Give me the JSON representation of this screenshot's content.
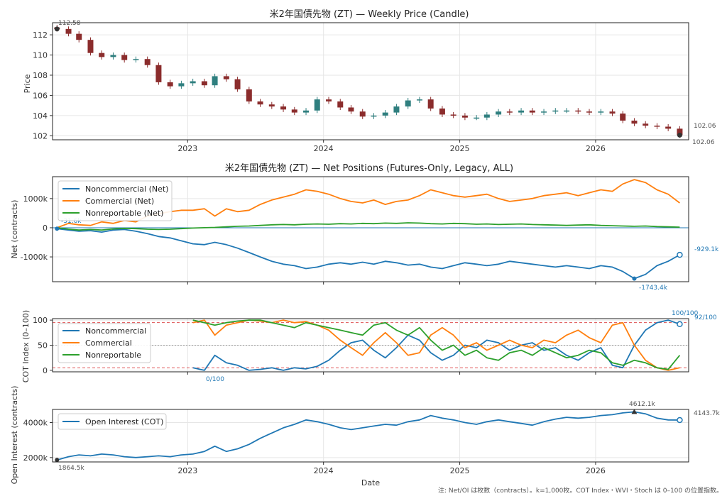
{
  "note": "注: Net/OI は枚数（contracts）。k=1,000枚。COT Index・WVI・Stoch は 0–100 の位置指数。",
  "xlabel": "Date",
  "x_ticks": [
    "2023",
    "2024",
    "2025",
    "2026"
  ],
  "colors": {
    "noncommercial": "#1f77b4",
    "commercial": "#ff7f0e",
    "nonreportable": "#2ca02c",
    "oi": "#1f77b4",
    "candle_up": "#2f7f7f",
    "candle_down": "#8b2c2c"
  },
  "chart_data": [
    {
      "type": "candlestick",
      "title": "米2年国債先物 (ZT) — Weekly Price (Candle)",
      "ylabel": "Price",
      "yticks": [
        "102",
        "104",
        "106",
        "108",
        "110",
        "112"
      ],
      "ylim": [
        101.6,
        113.2
      ],
      "xlim": [
        "2022-01-03",
        "2026-09-08"
      ],
      "annotations": {
        "start": "112.58",
        "end_last": "102.06",
        "end_low": "102.06"
      },
      "x": [
        "2022-01",
        "2022-02",
        "2022-03",
        "2022-04",
        "2022-05",
        "2022-06",
        "2022-07",
        "2022-08",
        "2022-09",
        "2022-10",
        "2022-11",
        "2022-12",
        "2023-01",
        "2023-02",
        "2023-03",
        "2023-04",
        "2023-05",
        "2023-06",
        "2023-07",
        "2023-08",
        "2023-09",
        "2023-10",
        "2023-11",
        "2023-12",
        "2024-01",
        "2024-02",
        "2024-03",
        "2024-04",
        "2024-05",
        "2024-06",
        "2024-07",
        "2024-08",
        "2024-09",
        "2024-10",
        "2024-11",
        "2024-12",
        "2025-01",
        "2025-02",
        "2025-03",
        "2025-04",
        "2025-05",
        "2025-06",
        "2025-07",
        "2025-08",
        "2025-09",
        "2025-10",
        "2025-11",
        "2025-12",
        "2026-01",
        "2026-02",
        "2026-03",
        "2026-04",
        "2026-05",
        "2026-06",
        "2026-07",
        "2026-08"
      ],
      "close": [
        112.58,
        112.1,
        111.5,
        110.2,
        109.8,
        110.0,
        109.5,
        109.6,
        109.0,
        107.3,
        106.9,
        107.2,
        107.4,
        107.0,
        107.9,
        107.6,
        106.6,
        105.4,
        105.1,
        104.9,
        104.6,
        104.3,
        104.5,
        105.6,
        105.4,
        104.8,
        104.4,
        103.9,
        104.0,
        104.3,
        104.9,
        105.5,
        105.6,
        104.7,
        104.1,
        104.0,
        103.8,
        103.8,
        104.1,
        104.4,
        104.3,
        104.5,
        104.3,
        104.4,
        104.5,
        104.5,
        104.4,
        104.3,
        104.4,
        104.2,
        103.5,
        103.2,
        103.0,
        102.9,
        102.7,
        102.06
      ]
    },
    {
      "type": "line",
      "title": "米2年国債先物 (ZT) — Net Positions (Futures-Only, Legacy, ALL)",
      "ylabel": "Net (contracts)",
      "yticks": [
        "-1000k",
        "0",
        "1000k"
      ],
      "ylim": [
        -1850,
        1750
      ],
      "annotations": {
        "start": "-31.6k",
        "min": "-1743.4k",
        "last": "-929.1k"
      },
      "x": [
        "2022-01",
        "2022-02",
        "2022-03",
        "2022-04",
        "2022-05",
        "2022-06",
        "2022-07",
        "2022-08",
        "2022-09",
        "2022-10",
        "2022-11",
        "2022-12",
        "2023-01",
        "2023-02",
        "2023-03",
        "2023-04",
        "2023-05",
        "2023-06",
        "2023-07",
        "2023-08",
        "2023-09",
        "2023-10",
        "2023-11",
        "2023-12",
        "2024-01",
        "2024-02",
        "2024-03",
        "2024-04",
        "2024-05",
        "2024-06",
        "2024-07",
        "2024-08",
        "2024-09",
        "2024-10",
        "2024-11",
        "2024-12",
        "2025-01",
        "2025-02",
        "2025-03",
        "2025-04",
        "2025-05",
        "2025-06",
        "2025-07",
        "2025-08",
        "2025-09",
        "2025-10",
        "2025-11",
        "2025-12",
        "2026-01",
        "2026-02",
        "2026-03",
        "2026-04",
        "2026-05",
        "2026-06",
        "2026-07",
        "2026-08"
      ],
      "series": [
        {
          "name": "Noncommercial (Net)",
          "values": [
            -31.6,
            -80,
            -120,
            -100,
            -150,
            -80,
            -60,
            -120,
            -200,
            -300,
            -350,
            -450,
            -550,
            -580,
            -500,
            -580,
            -700,
            -850,
            -1000,
            -1150,
            -1250,
            -1300,
            -1400,
            -1350,
            -1250,
            -1200,
            -1250,
            -1180,
            -1250,
            -1150,
            -1200,
            -1280,
            -1250,
            -1350,
            -1400,
            -1300,
            -1200,
            -1250,
            -1300,
            -1250,
            -1150,
            -1200,
            -1250,
            -1300,
            -1350,
            -1300,
            -1350,
            -1400,
            -1300,
            -1350,
            -1500,
            -1743.4,
            -1600,
            -1300,
            -1150,
            -929.1
          ]
        },
        {
          "name": "Commercial (Net)",
          "values": [
            0,
            150,
            100,
            80,
            200,
            150,
            250,
            200,
            400,
            480,
            550,
            600,
            600,
            650,
            400,
            650,
            550,
            600,
            800,
            950,
            1050,
            1150,
            1300,
            1250,
            1150,
            1000,
            900,
            850,
            950,
            800,
            900,
            950,
            1100,
            1300,
            1200,
            1100,
            1050,
            1100,
            1150,
            1000,
            900,
            950,
            1000,
            1100,
            1150,
            1200,
            1100,
            1200,
            1300,
            1250,
            1500,
            1650,
            1550,
            1300,
            1150,
            850
          ]
        },
        {
          "name": "Nonreportable (Net)",
          "values": [
            0,
            -50,
            -80,
            -60,
            -80,
            -40,
            -20,
            -30,
            -50,
            -60,
            -50,
            -30,
            -10,
            0,
            10,
            30,
            50,
            60,
            80,
            100,
            110,
            100,
            120,
            130,
            120,
            140,
            130,
            150,
            140,
            160,
            150,
            170,
            160,
            140,
            130,
            150,
            140,
            120,
            130,
            110,
            120,
            130,
            110,
            100,
            90,
            80,
            90,
            100,
            80,
            70,
            60,
            50,
            60,
            40,
            30,
            20
          ]
        }
      ]
    },
    {
      "type": "line",
      "title": "",
      "ylabel": "COT Index (0–100)",
      "yticks": [
        "0",
        "50",
        "100"
      ],
      "ylim": [
        -3,
        103
      ],
      "annotations": {
        "min": "0/100",
        "max": "100/100",
        "last": "92/100"
      },
      "x": [
        "2023-01",
        "2023-02",
        "2023-03",
        "2023-04",
        "2023-05",
        "2023-06",
        "2023-07",
        "2023-08",
        "2023-09",
        "2023-10",
        "2023-11",
        "2023-12",
        "2024-01",
        "2024-02",
        "2024-03",
        "2024-04",
        "2024-05",
        "2024-06",
        "2024-07",
        "2024-08",
        "2024-09",
        "2024-10",
        "2024-11",
        "2024-12",
        "2025-01",
        "2025-02",
        "2025-03",
        "2025-04",
        "2025-05",
        "2025-06",
        "2025-07",
        "2025-08",
        "2025-09",
        "2025-10",
        "2025-11",
        "2025-12",
        "2026-01",
        "2026-02",
        "2026-03",
        "2026-04",
        "2026-05",
        "2026-06",
        "2026-07",
        "2026-08"
      ],
      "series": [
        {
          "name": "Noncommercial",
          "values": [
            5,
            0,
            30,
            15,
            10,
            0,
            2,
            5,
            0,
            5,
            3,
            8,
            20,
            40,
            55,
            60,
            40,
            25,
            45,
            70,
            60,
            35,
            20,
            30,
            50,
            45,
            60,
            55,
            40,
            50,
            55,
            40,
            45,
            30,
            20,
            35,
            45,
            10,
            5,
            50,
            80,
            95,
            100,
            92
          ]
        },
        {
          "name": "Commercial",
          "values": [
            95,
            100,
            70,
            90,
            95,
            100,
            98,
            95,
            100,
            95,
            97,
            90,
            80,
            60,
            45,
            30,
            55,
            75,
            55,
            30,
            35,
            70,
            85,
            70,
            45,
            55,
            40,
            50,
            60,
            50,
            45,
            60,
            55,
            70,
            80,
            65,
            55,
            90,
            95,
            50,
            20,
            5,
            0,
            5
          ]
        },
        {
          "name": "Nonreportable",
          "values": [
            100,
            95,
            90,
            95,
            98,
            100,
            100,
            95,
            90,
            85,
            95,
            90,
            85,
            80,
            75,
            70,
            90,
            95,
            80,
            70,
            85,
            60,
            40,
            50,
            30,
            40,
            25,
            20,
            35,
            40,
            30,
            45,
            35,
            25,
            30,
            40,
            35,
            15,
            10,
            20,
            15,
            5,
            2,
            30
          ]
        }
      ]
    },
    {
      "type": "line",
      "title": "",
      "ylabel": "Open Interest (contracts)",
      "yticks": [
        "2000k",
        "4000k"
      ],
      "ylim": [
        1750,
        4750
      ],
      "annotations": {
        "start": "1864.5k",
        "max": "4612.1k",
        "last": "4143.7k"
      },
      "x": [
        "2022-01",
        "2022-02",
        "2022-03",
        "2022-04",
        "2022-05",
        "2022-06",
        "2022-07",
        "2022-08",
        "2022-09",
        "2022-10",
        "2022-11",
        "2022-12",
        "2023-01",
        "2023-02",
        "2023-03",
        "2023-04",
        "2023-05",
        "2023-06",
        "2023-07",
        "2023-08",
        "2023-09",
        "2023-10",
        "2023-11",
        "2023-12",
        "2024-01",
        "2024-02",
        "2024-03",
        "2024-04",
        "2024-05",
        "2024-06",
        "2024-07",
        "2024-08",
        "2024-09",
        "2024-10",
        "2024-11",
        "2024-12",
        "2025-01",
        "2025-02",
        "2025-03",
        "2025-04",
        "2025-05",
        "2025-06",
        "2025-07",
        "2025-08",
        "2025-09",
        "2025-10",
        "2025-11",
        "2025-12",
        "2026-01",
        "2026-02",
        "2026-03",
        "2026-04",
        "2026-05",
        "2026-06",
        "2026-07",
        "2026-08"
      ],
      "series": [
        {
          "name": "Open Interest (COT)",
          "values": [
            1864.5,
            2050,
            2150,
            2100,
            2200,
            2150,
            2050,
            2000,
            2050,
            2100,
            2050,
            2150,
            2200,
            2350,
            2650,
            2350,
            2500,
            2750,
            3100,
            3400,
            3700,
            3900,
            4150,
            4050,
            3900,
            3700,
            3600,
            3700,
            3800,
            3900,
            3850,
            4050,
            4150,
            4400,
            4250,
            4150,
            4000,
            3900,
            4050,
            4150,
            4050,
            3950,
            3850,
            4050,
            4200,
            4300,
            4250,
            4300,
            4400,
            4450,
            4550,
            4612.1,
            4500,
            4250,
            4150,
            4143.7
          ]
        }
      ]
    }
  ]
}
